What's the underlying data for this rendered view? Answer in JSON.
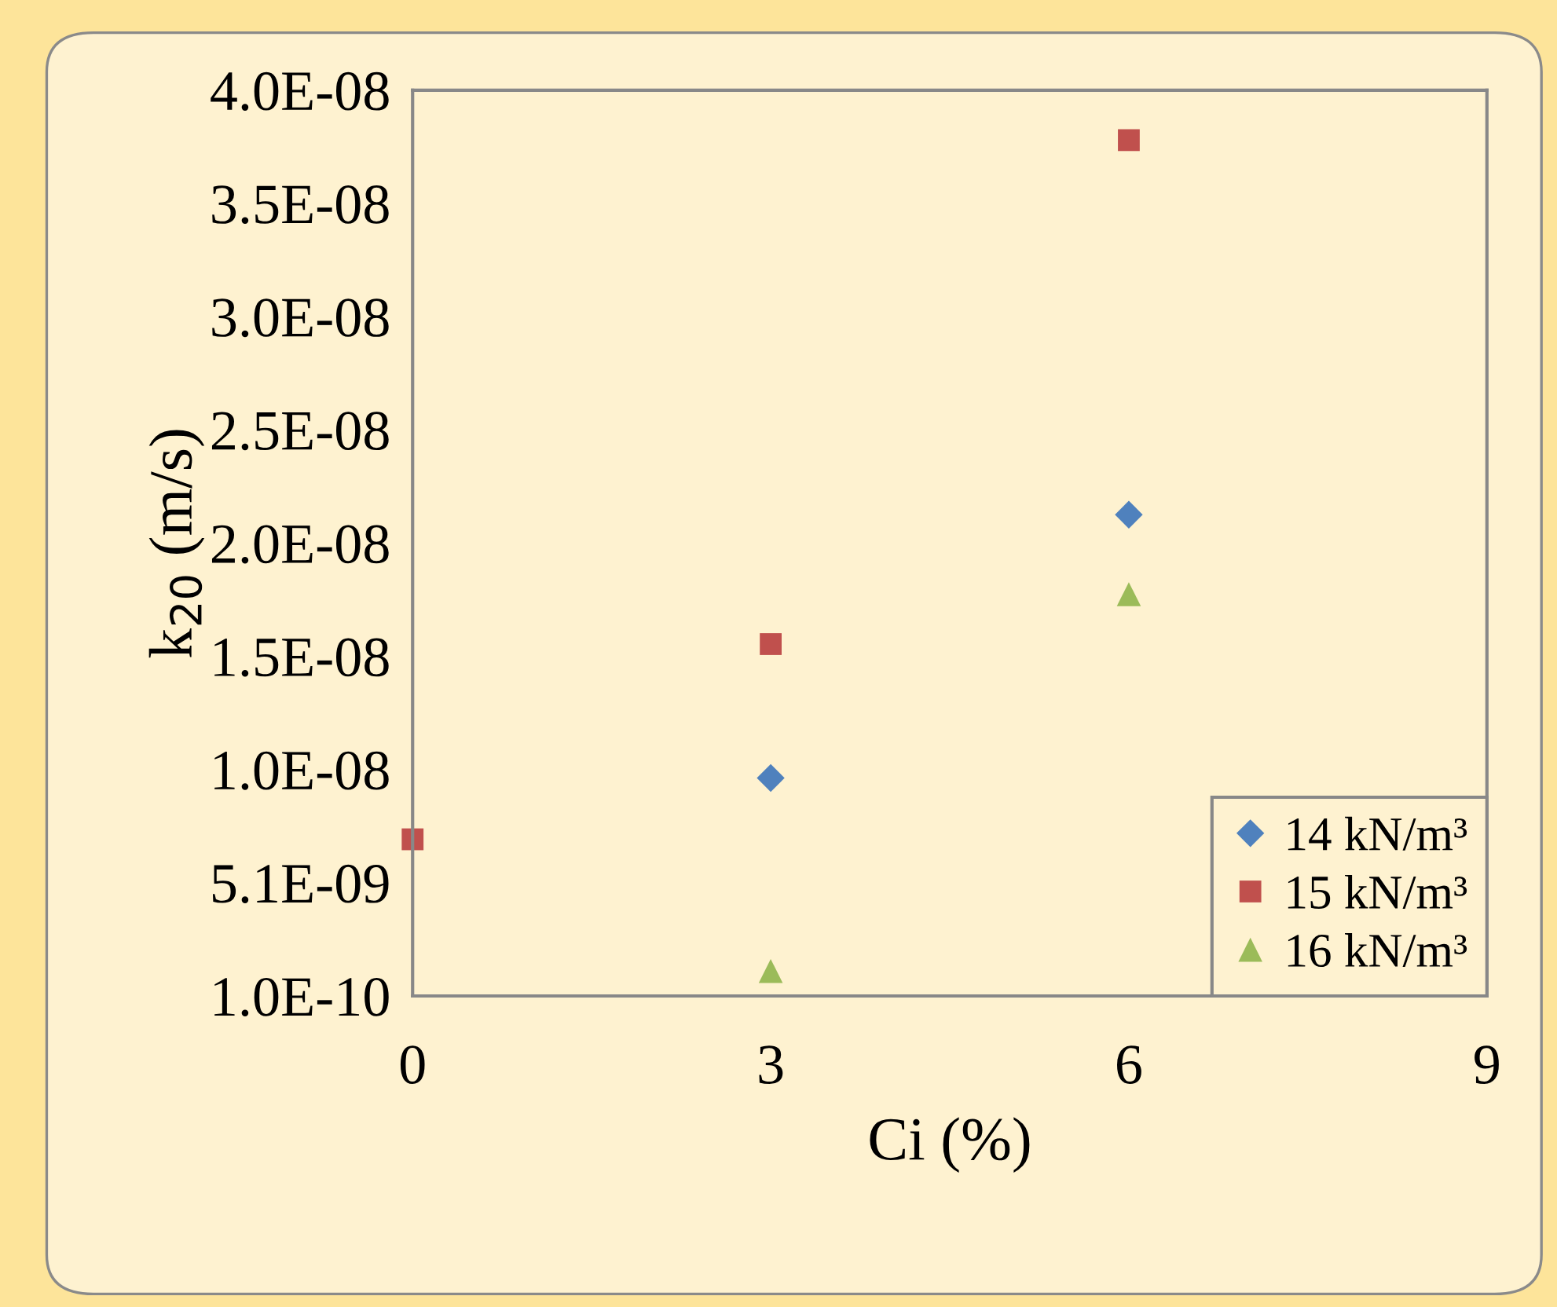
{
  "chart_data": {
    "type": "scatter",
    "xlabel": "Ci (%)",
    "ylabel": "k$_{20}$ (m/s)",
    "x": [
      0,
      3,
      6
    ],
    "series": [
      {
        "name": "14 kN/m³",
        "color": "#4f81bd",
        "marker": "diamond",
        "values": [
          null,
          9.7e-09,
          2.13e-08
        ]
      },
      {
        "name": "15 kN/m³",
        "color": "#c0504d",
        "marker": "square",
        "values": [
          7e-09,
          1.56e-08,
          3.78e-08
        ]
      },
      {
        "name": "16 kN/m³",
        "color": "#9bbb59",
        "marker": "triangle",
        "values": [
          null,
          1.2e-09,
          1.78e-08
        ]
      }
    ],
    "xlim": [
      0,
      9
    ],
    "xticks": [
      0,
      3,
      6,
      9
    ],
    "ylim": [
      1e-10,
      4e-08
    ],
    "yticks": [
      {
        "value": 1e-10,
        "label": "1.0E-10"
      },
      {
        "value": 5.0875e-09,
        "label": "5.1E-09"
      },
      {
        "value": 1.0075e-08,
        "label": "1.0E-08"
      },
      {
        "value": 1.50625e-08,
        "label": "1.5E-08"
      },
      {
        "value": 2.005e-08,
        "label": "2.0E-08"
      },
      {
        "value": 2.50375e-08,
        "label": "2.5E-08"
      },
      {
        "value": 3.0025e-08,
        "label": "3.0E-08"
      },
      {
        "value": 3.50125e-08,
        "label": "3.5E-08"
      },
      {
        "value": 4e-08,
        "label": "4.0E-08"
      }
    ],
    "grid": false,
    "legend": "bottom right"
  }
}
